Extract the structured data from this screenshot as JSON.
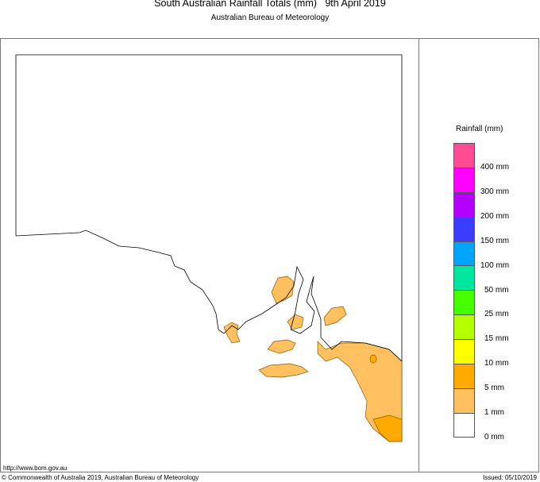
{
  "header": {
    "title": "South Australian Rainfall Totals (mm)   9th April 2019",
    "subtitle": "Australian Bureau of Meteorology"
  },
  "legend": {
    "title": "Rainfall (mm)",
    "swatches": [
      {
        "color": "#ff4a94"
      },
      {
        "color": "#ff00ff"
      },
      {
        "color": "#b300ff"
      },
      {
        "color": "#3c3cff"
      },
      {
        "color": "#00a4ff"
      },
      {
        "color": "#00e8a0"
      },
      {
        "color": "#44ff00"
      },
      {
        "color": "#b4ff00"
      },
      {
        "color": "#ffff00"
      },
      {
        "color": "#ffaa00"
      },
      {
        "color": "#ffc060"
      },
      {
        "color": "#ffffff"
      }
    ],
    "labels": [
      "400 mm",
      "300 mm",
      "200 mm",
      "150 mm",
      "100 mm",
      "50 mm",
      "25 mm",
      "15 mm",
      "10 mm",
      "5 mm",
      "1 mm",
      "0 mm"
    ]
  },
  "footer": {
    "url": "http://www.bom.gov.au",
    "copyright": "© Commonwealth of Australia 2019, Australian Bureau of Meteorology",
    "issued": "Issued: 05/10/2019"
  }
}
